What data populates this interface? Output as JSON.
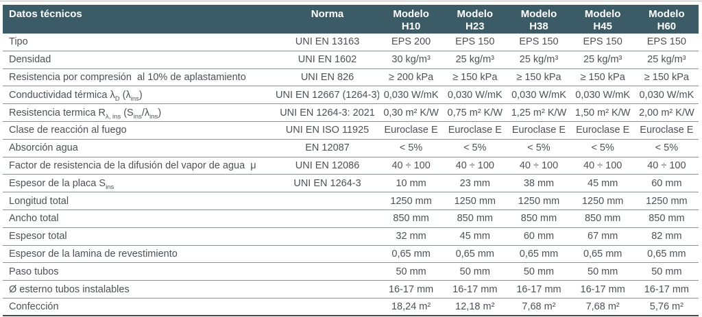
{
  "colors": {
    "header_bg": "#3b5b67",
    "header_text": "#ffffff",
    "row_text": "#4d5156",
    "row_line": "#8a9094",
    "bottom_line": "#45494d",
    "top_hairline": "#b9bcbe",
    "page_bg": "#ffffff"
  },
  "table": {
    "title_col_header": "Datos técnicos",
    "norma_col_header": "Norma",
    "model_headers": [
      {
        "line1": "Modelo",
        "line2": "H10"
      },
      {
        "line1": "Modelo",
        "line2": "H23"
      },
      {
        "line1": "Modelo",
        "line2": "H38"
      },
      {
        "line1": "Modelo",
        "line2": "H45"
      },
      {
        "line1": "Modelo",
        "line2": "H60"
      }
    ],
    "rows": [
      {
        "label": "Tipo",
        "norma": "UNI EN 13163",
        "values": [
          "EPS 200",
          "EPS 150",
          "EPS 150",
          "EPS 150",
          "EPS 150"
        ]
      },
      {
        "label": "Densidad",
        "norma": "UNI EN 1602",
        "values": [
          "30 kg/m³",
          "25 kg/m³",
          "25 kg/m³",
          "25 kg/m³",
          "25 kg/m³"
        ]
      },
      {
        "label": "Resistencia por compresión &nbsp;al 10% de aplastamiento",
        "norma": "UNI EN 826",
        "values": [
          "≥ 200 kPa",
          "≥ 150 kPa",
          "≥ 150 kPa",
          "≥ 150 kPa",
          "≥ 150 kPa"
        ]
      },
      {
        "label": "Conductividad térmica λ<sub>D</sub> (λ<sub>ins</sub>)",
        "norma": "UNI EN 12667 (1264-3)",
        "values": [
          "0,030 W/mK",
          "0,030 W/mK",
          "0,030 W/mK",
          "0,030 W/mK",
          "0,030 W/mK"
        ]
      },
      {
        "label": "Resistencia termica R<sub>λ, ins</sub> (S<sub>ins</sub>/λ<sub>ins</sub>)",
        "norma": "UNI EN 1264-3: 2021",
        "values": [
          "0,30 m² K/W",
          "0,75 m² K/W",
          "1,25 m² K/W",
          "1,50 m² K/W",
          "2,00 m² K/W"
        ]
      },
      {
        "label": "Clase de reacción al fuego",
        "norma": "UNI EN ISO 11925",
        "values": [
          "Euroclase E",
          "Euroclase E",
          "Euroclase E",
          "Euroclase E",
          "Euroclase E"
        ]
      },
      {
        "label": "Absorción agua",
        "norma": "EN 12087",
        "values": [
          "< 5%",
          "< 5%",
          "< 5%",
          "< 5%",
          "< 5%"
        ]
      },
      {
        "label": "Factor de resistencia de la difusión del vapor de agua &nbsp;μ",
        "norma": "UNI EN 12086",
        "values": [
          "40 ÷ 100",
          "40 ÷ 100",
          "40 ÷ 100",
          "40 ÷ 100",
          "40 ÷ 100"
        ]
      },
      {
        "label": "Espesor de la placa S<sub>ins</sub>",
        "norma": "UNI EN 1264-3",
        "values": [
          "10 mm",
          "23 mm",
          "38 mm",
          "45 mm",
          "60 mm"
        ]
      },
      {
        "label": "Longitud total",
        "norma": "",
        "values": [
          "1250 mm",
          "1250 mm",
          "1250 mm",
          "1250 mm",
          "1250 mm"
        ]
      },
      {
        "label": "Ancho total",
        "norma": "",
        "values": [
          "850 mm",
          "850 mm",
          "850 mm",
          "850 mm",
          "850 mm"
        ]
      },
      {
        "label": "Espesor total",
        "norma": "",
        "values": [
          "32 mm",
          "45 mm",
          "60 mm",
          "67 mm",
          "82 mm"
        ]
      },
      {
        "label": "Espesor de la lamina de revestimiento",
        "norma": "",
        "values": [
          "0,65 mm",
          "0,65 mm",
          "0,65 mm",
          "0,65 mm",
          "0,65 mm"
        ]
      },
      {
        "label": "Paso tubos",
        "norma": "",
        "values": [
          "50 mm",
          "50 mm",
          "50 mm",
          "50 mm",
          "50 mm"
        ]
      },
      {
        "label": "Ø esterno tubos instalables",
        "norma": "",
        "values": [
          "16-17 mm",
          "16-17 mm",
          "16-17 mm",
          "16-17 mm",
          "16-17 mm"
        ]
      },
      {
        "label": "Confección",
        "norma": "",
        "values": [
          "18,24 m²",
          "12,18 m²",
          "7,68 m²",
          "7,68 m²",
          "5,76 m²"
        ]
      }
    ]
  }
}
